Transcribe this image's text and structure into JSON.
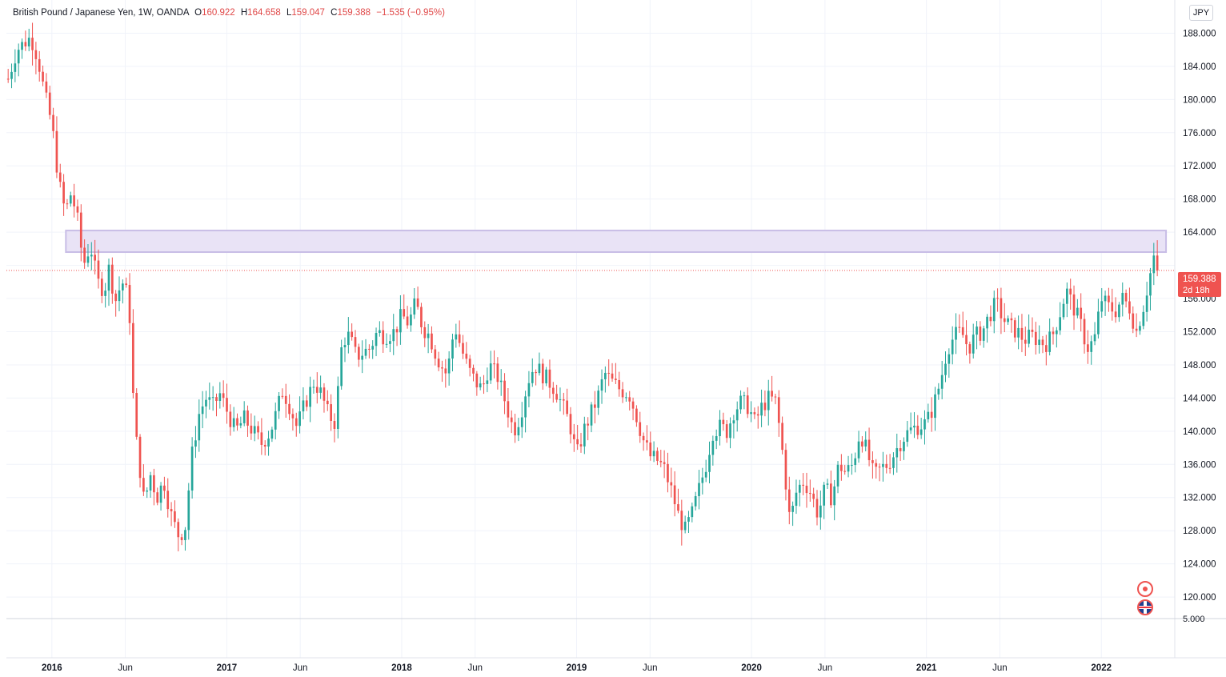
{
  "legend": {
    "symbol": "British Pound / Japanese Yen, 1W, OANDA",
    "open_label": "O",
    "open_value": "160.922",
    "high_label": "H",
    "high_value": "164.658",
    "low_label": "L",
    "low_value": "159.047",
    "close_label": "C",
    "close_value": "159.388",
    "change": "−1.535 (−0.95%)"
  },
  "currency": "JPY",
  "last_price": {
    "price": "159.388",
    "countdown": "2d 18h"
  },
  "pane2": {
    "label": "5.000"
  },
  "colors": {
    "up": "#26a69a",
    "down": "#ef5350",
    "zone_fill": "#e9e3f6",
    "zone_border": "#c8bde6",
    "grid": "#f0f3fa",
    "price_line": "#ef5350",
    "badge": "#ef5350"
  },
  "icons": [
    "event-dot-icon",
    "uk-flag-icon"
  ],
  "chart_data": {
    "type": "candlestick",
    "title": "British Pound / Japanese Yen, 1W, OANDA",
    "ylabel": "JPY",
    "ylim": [
      117.5,
      192.0
    ],
    "y_ticks": [
      120,
      124,
      128,
      132,
      136,
      140,
      144,
      148,
      152,
      156,
      160,
      164,
      168,
      172,
      176,
      180,
      184,
      188
    ],
    "y_tick_labels": [
      "120.000",
      "124.000",
      "128.000",
      "132.000",
      "136.000",
      "140.000",
      "144.000",
      "148.000",
      "152.000",
      "156.000",
      "",
      "164.000",
      "168.000",
      "172.000",
      "176.000",
      "180.000",
      "184.000",
      "188.000"
    ],
    "x_ticks": [
      {
        "t": 2016.0,
        "label": "2016",
        "bold": true
      },
      {
        "t": 2016.42,
        "label": "Jun",
        "bold": false
      },
      {
        "t": 2017.0,
        "label": "2017",
        "bold": true
      },
      {
        "t": 2017.42,
        "label": "Jun",
        "bold": false
      },
      {
        "t": 2018.0,
        "label": "2018",
        "bold": true
      },
      {
        "t": 2018.42,
        "label": "Jun",
        "bold": false
      },
      {
        "t": 2019.0,
        "label": "2019",
        "bold": true
      },
      {
        "t": 2019.42,
        "label": "Jun",
        "bold": false
      },
      {
        "t": 2020.0,
        "label": "2020",
        "bold": true
      },
      {
        "t": 2020.42,
        "label": "Jun",
        "bold": false
      },
      {
        "t": 2021.0,
        "label": "2021",
        "bold": true
      },
      {
        "t": 2021.42,
        "label": "Jun",
        "bold": false
      },
      {
        "t": 2022.0,
        "label": "2022",
        "bold": true
      }
    ],
    "xlim": [
      2015.74,
      2022.42
    ],
    "zone": {
      "t_start": 2016.08,
      "t_end": 2022.37,
      "y_low": 161.6,
      "y_high": 164.2
    },
    "current_price": 159.388,
    "grid": true,
    "path_weeks": 332,
    "path_points": [
      [
        2015.75,
        182.5
      ],
      [
        2015.8,
        186.0
      ],
      [
        2015.85,
        187.0
      ],
      [
        2015.88,
        187.5
      ],
      [
        2015.92,
        185.0
      ],
      [
        2015.96,
        180.5
      ],
      [
        2016.0,
        177.0
      ],
      [
        2016.04,
        170.0
      ],
      [
        2016.08,
        166.0
      ],
      [
        2016.1,
        169.0
      ],
      [
        2016.14,
        166.5
      ],
      [
        2016.18,
        160.0
      ],
      [
        2016.22,
        162.5
      ],
      [
        2016.26,
        158.0
      ],
      [
        2016.3,
        157.0
      ],
      [
        2016.33,
        160.0
      ],
      [
        2016.36,
        155.5
      ],
      [
        2016.4,
        158.0
      ],
      [
        2016.42,
        157.5
      ],
      [
        2016.45,
        153.0
      ],
      [
        2016.47,
        141.0
      ],
      [
        2016.5,
        136.0
      ],
      [
        2016.53,
        131.0
      ],
      [
        2016.56,
        135.0
      ],
      [
        2016.6,
        132.0
      ],
      [
        2016.64,
        134.0
      ],
      [
        2016.68,
        130.0
      ],
      [
        2016.72,
        127.5
      ],
      [
        2016.76,
        128.0
      ],
      [
        2016.8,
        137.0
      ],
      [
        2016.84,
        142.0
      ],
      [
        2016.88,
        144.0
      ],
      [
        2016.92,
        143.0
      ],
      [
        2016.96,
        144.5
      ],
      [
        2017.0,
        142.5
      ],
      [
        2017.05,
        140.0
      ],
      [
        2017.1,
        141.5
      ],
      [
        2017.15,
        140.0
      ],
      [
        2017.2,
        138.5
      ],
      [
        2017.25,
        140.0
      ],
      [
        2017.28,
        142.0
      ],
      [
        2017.32,
        145.0
      ],
      [
        2017.36,
        143.0
      ],
      [
        2017.4,
        140.5
      ],
      [
        2017.45,
        143.5
      ],
      [
        2017.5,
        146.0
      ],
      [
        2017.54,
        144.5
      ],
      [
        2017.58,
        142.0
      ],
      [
        2017.62,
        141.0
      ],
      [
        2017.66,
        151.0
      ],
      [
        2017.7,
        151.5
      ],
      [
        2017.74,
        149.0
      ],
      [
        2017.78,
        149.5
      ],
      [
        2017.82,
        150.0
      ],
      [
        2017.86,
        152.0
      ],
      [
        2017.9,
        151.5
      ],
      [
        2017.96,
        152.0
      ],
      [
        2018.0,
        154.0
      ],
      [
        2018.04,
        153.0
      ],
      [
        2018.08,
        155.5
      ],
      [
        2018.12,
        152.5
      ],
      [
        2018.16,
        151.5
      ],
      [
        2018.2,
        149.0
      ],
      [
        2018.25,
        147.0
      ],
      [
        2018.28,
        149.0
      ],
      [
        2018.3,
        153.0
      ],
      [
        2018.34,
        150.0
      ],
      [
        2018.38,
        147.5
      ],
      [
        2018.42,
        146.0
      ],
      [
        2018.46,
        145.0
      ],
      [
        2018.5,
        148.0
      ],
      [
        2018.55,
        146.5
      ],
      [
        2018.6,
        143.0
      ],
      [
        2018.64,
        140.0
      ],
      [
        2018.68,
        142.0
      ],
      [
        2018.72,
        146.0
      ],
      [
        2018.76,
        148.0
      ],
      [
        2018.8,
        147.0
      ],
      [
        2018.84,
        146.0
      ],
      [
        2018.88,
        145.0
      ],
      [
        2018.92,
        143.0
      ],
      [
        2018.96,
        141.0
      ],
      [
        2019.0,
        137.0
      ],
      [
        2019.04,
        140.0
      ],
      [
        2019.08,
        142.0
      ],
      [
        2019.12,
        144.0
      ],
      [
        2019.16,
        147.0
      ],
      [
        2019.2,
        146.0
      ],
      [
        2019.25,
        145.0
      ],
      [
        2019.3,
        144.5
      ],
      [
        2019.34,
        142.0
      ],
      [
        2019.38,
        139.0
      ],
      [
        2019.42,
        137.0
      ],
      [
        2019.46,
        136.5
      ],
      [
        2019.5,
        135.5
      ],
      [
        2019.54,
        133.0
      ],
      [
        2019.58,
        130.0
      ],
      [
        2019.62,
        128.0
      ],
      [
        2019.66,
        130.0
      ],
      [
        2019.7,
        133.0
      ],
      [
        2019.74,
        136.0
      ],
      [
        2019.78,
        140.0
      ],
      [
        2019.82,
        140.5
      ],
      [
        2019.86,
        140.0
      ],
      [
        2019.9,
        142.5
      ],
      [
        2019.94,
        143.5
      ],
      [
        2019.98,
        143.0
      ],
      [
        2020.02,
        141.0
      ],
      [
        2020.06,
        143.0
      ],
      [
        2020.1,
        144.0
      ],
      [
        2020.14,
        143.5
      ],
      [
        2020.18,
        137.0
      ],
      [
        2020.22,
        129.0
      ],
      [
        2020.26,
        133.0
      ],
      [
        2020.3,
        134.0
      ],
      [
        2020.34,
        132.5
      ],
      [
        2020.38,
        130.0
      ],
      [
        2020.42,
        133.0
      ],
      [
        2020.46,
        132.0
      ],
      [
        2020.5,
        136.0
      ],
      [
        2020.54,
        135.0
      ],
      [
        2020.58,
        136.0
      ],
      [
        2020.62,
        140.0
      ],
      [
        2020.66,
        137.5
      ],
      [
        2020.7,
        134.5
      ],
      [
        2020.74,
        135.5
      ],
      [
        2020.78,
        136.0
      ],
      [
        2020.82,
        137.5
      ],
      [
        2020.86,
        139.0
      ],
      [
        2020.9,
        140.0
      ],
      [
        2020.94,
        140.5
      ],
      [
        2021.0,
        141.0
      ],
      [
        2021.04,
        143.0
      ],
      [
        2021.08,
        146.0
      ],
      [
        2021.12,
        150.0
      ],
      [
        2021.16,
        151.5
      ],
      [
        2021.2,
        152.0
      ],
      [
        2021.24,
        150.0
      ],
      [
        2021.28,
        151.5
      ],
      [
        2021.32,
        152.0
      ],
      [
        2021.36,
        154.0
      ],
      [
        2021.4,
        155.5
      ],
      [
        2021.44,
        153.5
      ],
      [
        2021.48,
        152.5
      ],
      [
        2021.52,
        152.0
      ],
      [
        2021.56,
        151.0
      ],
      [
        2021.6,
        151.5
      ],
      [
        2021.64,
        151.0
      ],
      [
        2021.68,
        150.5
      ],
      [
        2021.72,
        151.5
      ],
      [
        2021.76,
        154.0
      ],
      [
        2021.8,
        157.0
      ],
      [
        2021.84,
        155.0
      ],
      [
        2021.88,
        153.0
      ],
      [
        2021.92,
        150.0
      ],
      [
        2021.96,
        151.0
      ],
      [
        2022.0,
        156.0
      ],
      [
        2022.04,
        155.0
      ],
      [
        2022.08,
        154.5
      ],
      [
        2022.12,
        156.0
      ],
      [
        2022.16,
        155.0
      ],
      [
        2022.2,
        152.0
      ],
      [
        2022.24,
        155.0
      ],
      [
        2022.27,
        158.0
      ],
      [
        2022.3,
        161.0
      ],
      [
        2022.32,
        159.4
      ]
    ]
  }
}
